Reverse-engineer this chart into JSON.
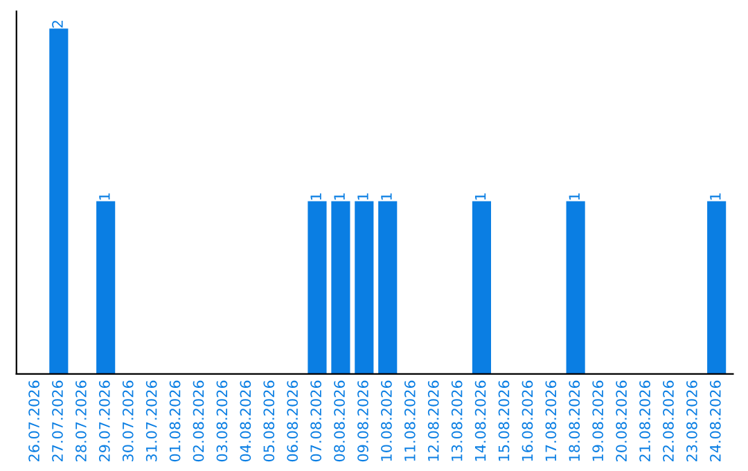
{
  "chart_data": {
    "type": "bar",
    "categories": [
      "26.07.2026",
      "27.07.2026",
      "28.07.2026",
      "29.07.2026",
      "30.07.2026",
      "31.07.2026",
      "01.08.2026",
      "02.08.2026",
      "03.08.2026",
      "04.08.2026",
      "05.08.2026",
      "06.08.2026",
      "07.08.2026",
      "08.08.2026",
      "09.08.2026",
      "10.08.2026",
      "11.08.2026",
      "12.08.2026",
      "13.08.2026",
      "14.08.2026",
      "15.08.2026",
      "16.08.2026",
      "17.08.2026",
      "18.08.2026",
      "19.08.2026",
      "20.08.2026",
      "21.08.2026",
      "22.08.2026",
      "23.08.2026",
      "24.08.2026"
    ],
    "values": [
      0,
      2,
      0,
      1,
      0,
      0,
      0,
      0,
      0,
      0,
      0,
      0,
      1,
      1,
      1,
      1,
      0,
      0,
      0,
      1,
      0,
      0,
      0,
      1,
      0,
      0,
      0,
      0,
      0,
      1
    ],
    "value_labels": [
      null,
      "2",
      null,
      "1",
      null,
      null,
      null,
      null,
      null,
      null,
      null,
      null,
      "1",
      "1",
      "1",
      "1",
      null,
      null,
      null,
      "1",
      null,
      null,
      null,
      "1",
      null,
      null,
      null,
      null,
      null,
      "1"
    ],
    "color": "#0a7ee3"
  }
}
